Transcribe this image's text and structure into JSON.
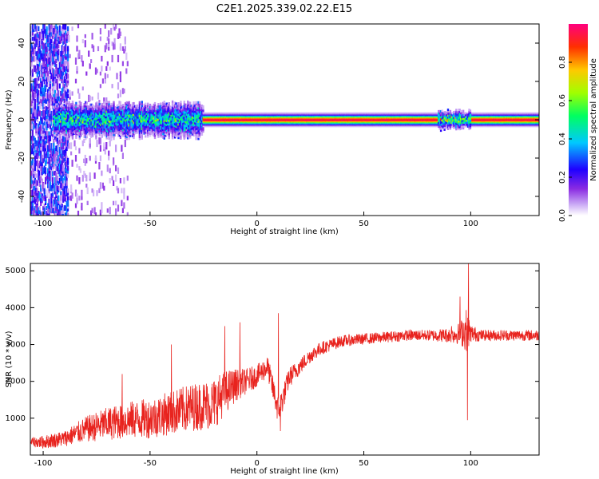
{
  "figure": {
    "title": "C2E1.2025.339.02.22.E15"
  },
  "colors": {
    "snr_line": "#e8231e",
    "spectral_ramp": [
      "#ffffff",
      "#c9a8f5",
      "#8a2be2",
      "#1f00ff",
      "#00c8ff",
      "#00ff60",
      "#a0ff00",
      "#ffc800",
      "#ff3000",
      "#ff007f"
    ]
  },
  "chart_data": [
    {
      "type": "heatmap",
      "xlabel": "Height of straight line (km)",
      "ylabel": "Frequency (Hz)",
      "xlim": [
        -106,
        132
      ],
      "ylim": [
        -50,
        50
      ],
      "x_ticks": [
        -100,
        -50,
        0,
        50,
        100
      ],
      "y_ticks": [
        -40,
        -20,
        0,
        20,
        40
      ],
      "colorbar": {
        "label": "Normalized spectral amplitude",
        "range": [
          0,
          1
        ],
        "ticks": [
          "0.0",
          "0.2",
          "0.4",
          "0.6",
          "0.8"
        ]
      },
      "segments": [
        {
          "x_range": [
            -106,
            -88
          ],
          "kind": "noise",
          "spread_hz": 50,
          "max_amp": 0.35
        },
        {
          "x_range": [
            -88,
            -60
          ],
          "kind": "sparse-noise",
          "spread_hz": 50,
          "max_amp": 0.2
        },
        {
          "x_range": [
            -95,
            -25
          ],
          "kind": "band",
          "center_hz": 0,
          "halfwidth_hz": 8,
          "peak_amp": 0.45
        },
        {
          "x_range": [
            -25,
            132
          ],
          "kind": "line",
          "center_hz": 0,
          "halfwidth_hz": 3,
          "peak_amp": 1.0
        },
        {
          "x_range": [
            85,
            100
          ],
          "kind": "band",
          "center_hz": 0,
          "halfwidth_hz": 4,
          "peak_amp": 0.55
        }
      ]
    },
    {
      "type": "line",
      "xlabel": "Height of straight line (km)",
      "ylabel": "SNR (10 * v/v)",
      "xlim": [
        -106,
        132
      ],
      "ylim": [
        0,
        5200
      ],
      "x_ticks": [
        -100,
        -50,
        0,
        50,
        100
      ],
      "y_ticks": [
        1000,
        2000,
        3000,
        4000,
        5000
      ],
      "x": [
        -106,
        -100,
        -90,
        -80,
        -70,
        -60,
        -50,
        -40,
        -30,
        -20,
        -15,
        -10,
        -5,
        0,
        5,
        10,
        12,
        15,
        20,
        25,
        30,
        40,
        50,
        60,
        70,
        80,
        90,
        95,
        98,
        100,
        105,
        110,
        120,
        132
      ],
      "y": [
        350,
        350,
        450,
        700,
        850,
        950,
        1000,
        1150,
        1300,
        1400,
        1700,
        1900,
        2000,
        2150,
        2400,
        1200,
        1500,
        2100,
        2400,
        2700,
        2900,
        3100,
        3150,
        3200,
        3250,
        3250,
        3250,
        3300,
        3400,
        3300,
        3250,
        3250,
        3250,
        3250
      ],
      "noise_amp": [
        120,
        180,
        220,
        350,
        450,
        500,
        550,
        600,
        650,
        700,
        600,
        450,
        350,
        300,
        300,
        400,
        350,
        280,
        220,
        200,
        180,
        160,
        150,
        150,
        150,
        150,
        200,
        300,
        600,
        250,
        150,
        150,
        150,
        150
      ],
      "spikes": [
        {
          "x": -15,
          "y": 3500
        },
        {
          "x": -8,
          "y": 3600
        },
        {
          "x": 10,
          "y": 3850
        },
        {
          "x": 11,
          "y": 650
        },
        {
          "x": -40,
          "y": 3000
        },
        {
          "x": -63,
          "y": 2200
        },
        {
          "x": 95,
          "y": 4300
        },
        {
          "x": 99,
          "y": 5200
        },
        {
          "x": 98.5,
          "y": 950
        },
        {
          "x": 91,
          "y": 3500
        }
      ]
    }
  ]
}
